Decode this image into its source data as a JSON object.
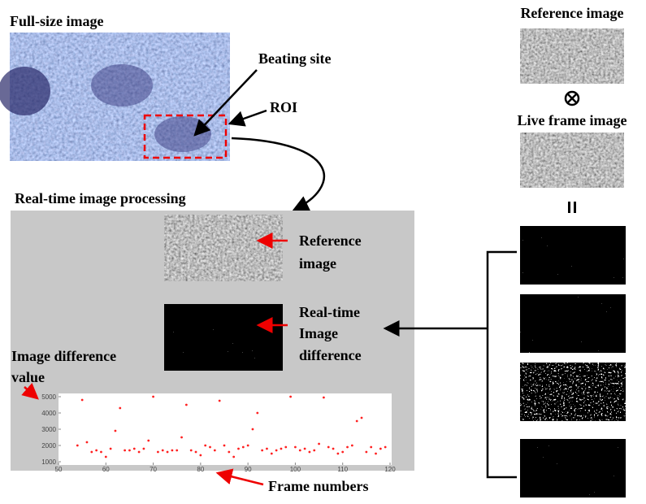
{
  "header": {
    "full_size": "Full-size image",
    "beating_site": "Beating site",
    "roi": "ROI",
    "processing": "Real-time image processing"
  },
  "right_column": {
    "reference": "Reference image",
    "live_frame": "Live frame image"
  },
  "panel": {
    "reference": [
      "Reference",
      "image"
    ],
    "difference": [
      "Real-time",
      "Image",
      "difference"
    ],
    "value_label": [
      "Image difference",
      "value"
    ],
    "frame_label": "Frame numbers"
  },
  "plot": {
    "type": "scatter",
    "color": "#ff2020",
    "x": [
      54,
      55,
      56,
      57,
      58,
      59,
      60,
      61,
      62,
      63,
      64,
      65,
      66,
      67,
      68,
      69,
      70,
      71,
      72,
      73,
      74,
      75,
      76,
      77,
      78,
      79,
      80,
      81,
      82,
      83,
      84,
      85,
      86,
      87,
      88,
      89,
      90,
      91,
      92,
      93,
      94,
      95,
      96,
      97,
      98,
      99,
      100,
      101,
      102,
      103,
      104,
      105,
      106,
      107,
      108,
      109,
      110,
      111,
      112,
      113,
      114,
      115,
      116,
      117,
      118,
      119
    ],
    "values": [
      2000,
      4800,
      2200,
      1600,
      1700,
      1600,
      1300,
      1800,
      2900,
      4300,
      1700,
      1700,
      1800,
      1600,
      1800,
      2300,
      5000,
      1600,
      1700,
      1600,
      1700,
      1700,
      2500,
      4500,
      1700,
      1600,
      1400,
      2000,
      1900,
      1700,
      4750,
      2000,
      1600,
      1300,
      1800,
      1900,
      2000,
      3000,
      4000,
      1700,
      1800,
      1500,
      1700,
      1800,
      1900,
      5000,
      1900,
      1700,
      1800,
      1600,
      1700,
      2100,
      4950,
      1900,
      1800,
      1500,
      1600,
      1900,
      2000,
      3500,
      3700,
      1600,
      1900,
      1500,
      1800,
      1900
    ],
    "xlim": [
      50,
      120
    ],
    "ylim": [
      1000,
      5000
    ],
    "xticks": [
      50,
      60,
      70,
      80,
      90,
      100,
      110,
      120
    ],
    "yticks": [
      1000,
      2000,
      3000,
      4000,
      5000
    ]
  }
}
